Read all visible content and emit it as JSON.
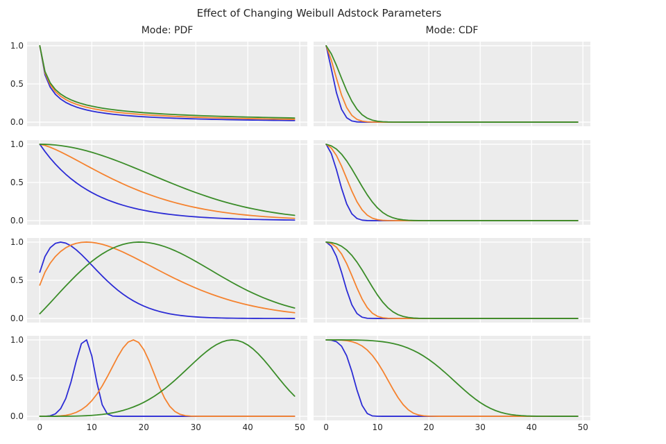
{
  "figure": {
    "title": "Effect of Changing Weibull Adstock Parameters"
  },
  "chart_data": {
    "type": "line",
    "title": "Effect of Changing Weibull Adstock Parameters",
    "grid": true,
    "background_color": "#ececec",
    "gridline_color": "#ffffff",
    "columns": [
      {
        "id": "pdf",
        "title": "Mode: PDF"
      },
      {
        "id": "cdf",
        "title": "Mode: CDF"
      }
    ],
    "x_domain": [
      0,
      49
    ],
    "x_ticks": [
      {
        "v": 0,
        "label": "0"
      },
      {
        "v": 10,
        "label": "10"
      },
      {
        "v": 20,
        "label": "20"
      },
      {
        "v": 30,
        "label": "30"
      },
      {
        "v": 40,
        "label": "40"
      },
      {
        "v": 50,
        "label": "50"
      }
    ],
    "y_ticks": [
      {
        "v": 1.0,
        "label": "1.0"
      },
      {
        "v": 0.5,
        "label": "0.5"
      },
      {
        "v": 0.0,
        "label": "0.0"
      }
    ],
    "series_colors": {
      "blue": "#2b2bd5",
      "orange": "#f5822e",
      "green": "#3a8c28"
    },
    "curve_model": "w(x) = (x+shift)^power * exp(-(((x+shift)/scale)^shape)), x = 0..49, normalized so max(w)=1",
    "rows": [
      {
        "pdf": [
          {
            "color": "blue",
            "shape": 0.5,
            "scale": 10,
            "power": -0.5,
            "shift": 1
          },
          {
            "color": "orange",
            "shape": 0.5,
            "scale": 20,
            "power": -0.5,
            "shift": 1
          },
          {
            "color": "green",
            "shape": 0.5,
            "scale": 40,
            "power": -0.5,
            "shift": 1
          }
        ],
        "cdf": [
          {
            "color": "blue",
            "shape": 2,
            "scale": 2.9,
            "power": 0,
            "shift": 1
          },
          {
            "color": "orange",
            "shape": 2,
            "scale": 3.8,
            "power": 0,
            "shift": 1
          },
          {
            "color": "green",
            "shape": 2,
            "scale": 5.2,
            "power": 0,
            "shift": 1
          }
        ]
      },
      {
        "pdf": [
          {
            "color": "blue",
            "shape": 1,
            "scale": 10,
            "power": 0,
            "shift": 0
          },
          {
            "color": "orange",
            "shape": 1.4,
            "scale": 20,
            "power": 0,
            "shift": 0
          },
          {
            "color": "green",
            "shape": 2,
            "scale": 30,
            "power": 0,
            "shift": 0
          }
        ],
        "cdf": [
          {
            "color": "blue",
            "shape": 2.5,
            "scale": 4.2,
            "power": 0,
            "shift": 1
          },
          {
            "color": "orange",
            "shape": 2.5,
            "scale": 6.1,
            "power": 0,
            "shift": 1
          },
          {
            "color": "green",
            "shape": 2.5,
            "scale": 8.7,
            "power": 0,
            "shift": 1
          }
        ]
      },
      {
        "pdf": [
          {
            "color": "blue",
            "shape": 1.5,
            "scale": 10.4,
            "power": 0.5,
            "shift": 1
          },
          {
            "color": "orange",
            "shape": 1.5,
            "scale": 20.8,
            "power": 0.5,
            "shift": 1
          },
          {
            "color": "green",
            "shape": 2.1,
            "scale": 27.5,
            "power": 1.1,
            "shift": 1
          }
        ],
        "cdf": [
          {
            "color": "blue",
            "shape": 3,
            "scale": 5.0,
            "power": 0,
            "shift": 1
          },
          {
            "color": "orange",
            "shape": 3,
            "scale": 7.2,
            "power": 0,
            "shift": 1
          },
          {
            "color": "green",
            "shape": 3,
            "scale": 10.4,
            "power": 0,
            "shift": 1
          }
        ]
      },
      {
        "pdf": [
          {
            "color": "blue",
            "shape": 5,
            "scale": 9.1,
            "power": 4,
            "shift": 0
          },
          {
            "color": "orange",
            "shape": 5,
            "scale": 18.8,
            "power": 4,
            "shift": 0
          },
          {
            "color": "green",
            "shape": 5,
            "scale": 38.7,
            "power": 4,
            "shift": 0
          }
        ],
        "cdf": [
          {
            "color": "blue",
            "shape": 4.5,
            "scale": 6.9,
            "power": 0,
            "shift": 1
          },
          {
            "color": "orange",
            "shape": 4.5,
            "scale": 13.9,
            "power": 0,
            "shift": 1
          },
          {
            "color": "green",
            "shape": 4.5,
            "scale": 27.5,
            "power": 0,
            "shift": 1
          }
        ]
      }
    ]
  }
}
